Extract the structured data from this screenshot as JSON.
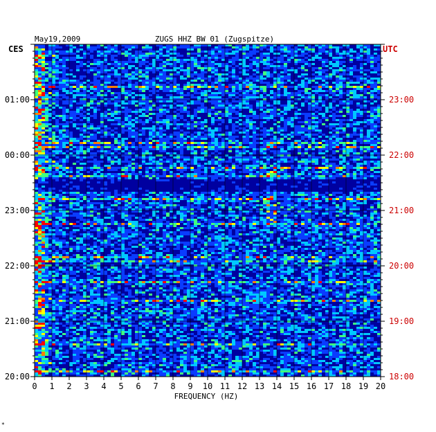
{
  "chart_data": {
    "type": "heatmap",
    "title": "ZUGS HHZ BW 01 (Zugspitze)",
    "date": "May19,2009",
    "xlabel": "FREQUENCY (HZ)",
    "x_ticks": [
      "0",
      "1",
      "2",
      "3",
      "4",
      "5",
      "6",
      "7",
      "8",
      "9",
      "10",
      "11",
      "12",
      "13",
      "14",
      "15",
      "16",
      "17",
      "18",
      "19",
      "20"
    ],
    "xlim": [
      0,
      20
    ],
    "left_axis_label": "CES",
    "left_ticks": [
      "01:00",
      "00:00",
      "23:00",
      "22:00",
      "21:00",
      "20:00"
    ],
    "right_axis_label": "UTC",
    "right_ticks": [
      "23:00",
      "22:00",
      "21:00",
      "20:00",
      "19:00",
      "18:00"
    ],
    "colors": {
      "low": "#0000a0",
      "mid": "#0a3cff",
      "cyan": "#00c8ff",
      "green": "#40ff80",
      "yellow": "#ffff00",
      "orange": "#ff8000",
      "red": "#ff0000",
      "utc_text": "#cc0000",
      "grid": "#000000"
    }
  },
  "footer_mark": "*"
}
